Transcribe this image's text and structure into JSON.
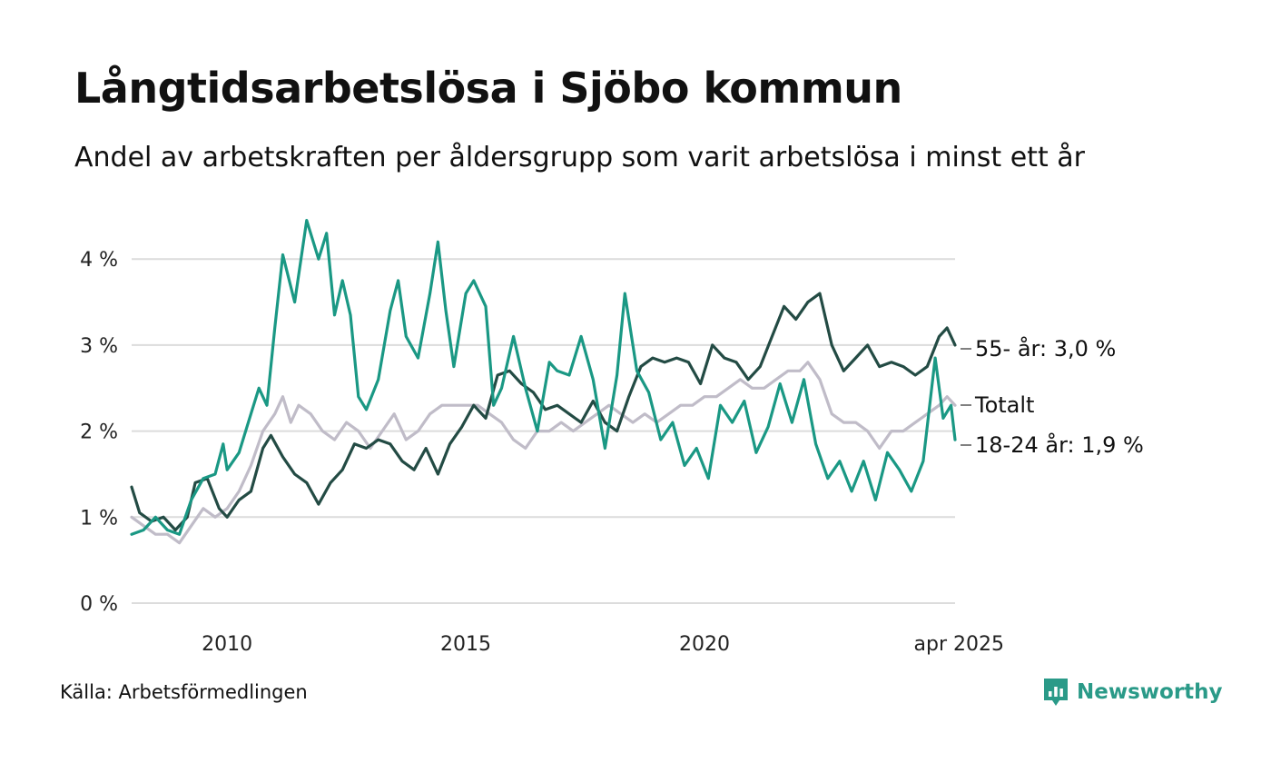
{
  "title": "Långtidsarbetslösa i Sjöbo kommun",
  "subtitle": "Andel av arbetskraften per åldersgrupp som varit arbetslösa i minst ett år",
  "source": "Källa: Arbetsförmedlingen",
  "brand": {
    "name": "Newsworthy",
    "icon": "newsworthy-logo-icon",
    "color": "#2a9a88"
  },
  "chart_data": {
    "type": "line",
    "y_unit": "%",
    "ylim": [
      0,
      4.6
    ],
    "xlim": [
      "2008-01",
      "2025-04"
    ],
    "y_ticks": [
      {
        "value": 0,
        "label": "0 %"
      },
      {
        "value": 1,
        "label": "1 %"
      },
      {
        "value": 2,
        "label": "2 %"
      },
      {
        "value": 3,
        "label": "3 %"
      },
      {
        "value": 4,
        "label": "4 %"
      }
    ],
    "x_ticks": [
      {
        "value": "2010-01",
        "label": "2010"
      },
      {
        "value": "2015-01",
        "label": "2015"
      },
      {
        "value": "2020-01",
        "label": "2020"
      },
      {
        "value": "2025-04",
        "label": "apr 2025"
      }
    ],
    "grid": "horizontal",
    "legend": "end labels at right",
    "series": [
      {
        "name": "Totalt",
        "end_label": "Totalt",
        "color": "#c0bcc8",
        "points": [
          [
            "2008-01",
            1.0
          ],
          [
            "2008-04",
            0.9
          ],
          [
            "2008-07",
            0.8
          ],
          [
            "2008-10",
            0.8
          ],
          [
            "2009-01",
            0.7
          ],
          [
            "2009-04",
            0.9
          ],
          [
            "2009-07",
            1.1
          ],
          [
            "2009-10",
            1.0
          ],
          [
            "2010-01",
            1.1
          ],
          [
            "2010-04",
            1.3
          ],
          [
            "2010-07",
            1.6
          ],
          [
            "2010-10",
            2.0
          ],
          [
            "2011-01",
            2.2
          ],
          [
            "2011-03",
            2.4
          ],
          [
            "2011-05",
            2.1
          ],
          [
            "2011-07",
            2.3
          ],
          [
            "2011-10",
            2.2
          ],
          [
            "2012-01",
            2.0
          ],
          [
            "2012-04",
            1.9
          ],
          [
            "2012-07",
            2.1
          ],
          [
            "2012-10",
            2.0
          ],
          [
            "2013-01",
            1.8
          ],
          [
            "2013-04",
            2.0
          ],
          [
            "2013-07",
            2.2
          ],
          [
            "2013-10",
            1.9
          ],
          [
            "2014-01",
            2.0
          ],
          [
            "2014-04",
            2.2
          ],
          [
            "2014-07",
            2.3
          ],
          [
            "2014-10",
            2.3
          ],
          [
            "2015-01",
            2.3
          ],
          [
            "2015-04",
            2.3
          ],
          [
            "2015-07",
            2.2
          ],
          [
            "2015-10",
            2.1
          ],
          [
            "2016-01",
            1.9
          ],
          [
            "2016-04",
            1.8
          ],
          [
            "2016-07",
            2.0
          ],
          [
            "2016-10",
            2.0
          ],
          [
            "2017-01",
            2.1
          ],
          [
            "2017-04",
            2.0
          ],
          [
            "2017-07",
            2.1
          ],
          [
            "2017-10",
            2.2
          ],
          [
            "2018-01",
            2.3
          ],
          [
            "2018-04",
            2.2
          ],
          [
            "2018-07",
            2.1
          ],
          [
            "2018-10",
            2.2
          ],
          [
            "2019-01",
            2.1
          ],
          [
            "2019-04",
            2.2
          ],
          [
            "2019-07",
            2.3
          ],
          [
            "2019-10",
            2.3
          ],
          [
            "2020-01",
            2.4
          ],
          [
            "2020-04",
            2.4
          ],
          [
            "2020-07",
            2.5
          ],
          [
            "2020-10",
            2.6
          ],
          [
            "2021-01",
            2.5
          ],
          [
            "2021-04",
            2.5
          ],
          [
            "2021-07",
            2.6
          ],
          [
            "2021-10",
            2.7
          ],
          [
            "2022-01",
            2.7
          ],
          [
            "2022-03",
            2.8
          ],
          [
            "2022-06",
            2.6
          ],
          [
            "2022-09",
            2.2
          ],
          [
            "2022-12",
            2.1
          ],
          [
            "2023-03",
            2.1
          ],
          [
            "2023-06",
            2.0
          ],
          [
            "2023-09",
            1.8
          ],
          [
            "2023-12",
            2.0
          ],
          [
            "2024-03",
            2.0
          ],
          [
            "2024-06",
            2.1
          ],
          [
            "2024-09",
            2.2
          ],
          [
            "2024-12",
            2.3
          ],
          [
            "2025-02",
            2.4
          ],
          [
            "2025-04",
            2.3
          ]
        ]
      },
      {
        "name": "55- år",
        "end_label": "55- år: 3,0 %",
        "color": "#234b44",
        "points": [
          [
            "2008-01",
            1.35
          ],
          [
            "2008-03",
            1.05
          ],
          [
            "2008-06",
            0.95
          ],
          [
            "2008-09",
            1.0
          ],
          [
            "2008-12",
            0.85
          ],
          [
            "2009-03",
            1.0
          ],
          [
            "2009-05",
            1.4
          ],
          [
            "2009-08",
            1.45
          ],
          [
            "2009-11",
            1.1
          ],
          [
            "2010-01",
            1.0
          ],
          [
            "2010-04",
            1.2
          ],
          [
            "2010-07",
            1.3
          ],
          [
            "2010-10",
            1.8
          ],
          [
            "2010-12",
            1.95
          ],
          [
            "2011-03",
            1.7
          ],
          [
            "2011-06",
            1.5
          ],
          [
            "2011-09",
            1.4
          ],
          [
            "2011-12",
            1.15
          ],
          [
            "2012-03",
            1.4
          ],
          [
            "2012-06",
            1.55
          ],
          [
            "2012-09",
            1.85
          ],
          [
            "2012-12",
            1.8
          ],
          [
            "2013-03",
            1.9
          ],
          [
            "2013-06",
            1.85
          ],
          [
            "2013-09",
            1.65
          ],
          [
            "2013-12",
            1.55
          ],
          [
            "2014-03",
            1.8
          ],
          [
            "2014-06",
            1.5
          ],
          [
            "2014-09",
            1.85
          ],
          [
            "2014-12",
            2.05
          ],
          [
            "2015-03",
            2.3
          ],
          [
            "2015-06",
            2.15
          ],
          [
            "2015-09",
            2.65
          ],
          [
            "2015-12",
            2.7
          ],
          [
            "2016-03",
            2.55
          ],
          [
            "2016-06",
            2.45
          ],
          [
            "2016-09",
            2.25
          ],
          [
            "2016-12",
            2.3
          ],
          [
            "2017-03",
            2.2
          ],
          [
            "2017-06",
            2.1
          ],
          [
            "2017-09",
            2.35
          ],
          [
            "2017-12",
            2.1
          ],
          [
            "2018-03",
            2.0
          ],
          [
            "2018-06",
            2.4
          ],
          [
            "2018-09",
            2.75
          ],
          [
            "2018-12",
            2.85
          ],
          [
            "2019-03",
            2.8
          ],
          [
            "2019-06",
            2.85
          ],
          [
            "2019-09",
            2.8
          ],
          [
            "2019-12",
            2.55
          ],
          [
            "2020-03",
            3.0
          ],
          [
            "2020-06",
            2.85
          ],
          [
            "2020-09",
            2.8
          ],
          [
            "2020-12",
            2.6
          ],
          [
            "2021-03",
            2.75
          ],
          [
            "2021-06",
            3.1
          ],
          [
            "2021-09",
            3.45
          ],
          [
            "2021-12",
            3.3
          ],
          [
            "2022-03",
            3.5
          ],
          [
            "2022-06",
            3.6
          ],
          [
            "2022-09",
            3.0
          ],
          [
            "2022-12",
            2.7
          ],
          [
            "2023-03",
            2.85
          ],
          [
            "2023-06",
            3.0
          ],
          [
            "2023-09",
            2.75
          ],
          [
            "2023-12",
            2.8
          ],
          [
            "2024-03",
            2.75
          ],
          [
            "2024-06",
            2.65
          ],
          [
            "2024-09",
            2.75
          ],
          [
            "2024-12",
            3.1
          ],
          [
            "2025-02",
            3.2
          ],
          [
            "2025-04",
            3.0
          ]
        ]
      },
      {
        "name": "18-24 år",
        "end_label": "18-24 år: 1,9 %",
        "color": "#1a9884",
        "points": [
          [
            "2008-01",
            0.8
          ],
          [
            "2008-04",
            0.85
          ],
          [
            "2008-07",
            1.0
          ],
          [
            "2008-10",
            0.85
          ],
          [
            "2009-01",
            0.8
          ],
          [
            "2009-04",
            1.2
          ],
          [
            "2009-07",
            1.45
          ],
          [
            "2009-10",
            1.5
          ],
          [
            "2009-12",
            1.85
          ],
          [
            "2010-01",
            1.55
          ],
          [
            "2010-04",
            1.75
          ],
          [
            "2010-07",
            2.2
          ],
          [
            "2010-09",
            2.5
          ],
          [
            "2010-11",
            2.3
          ],
          [
            "2011-01",
            3.2
          ],
          [
            "2011-03",
            4.05
          ],
          [
            "2011-06",
            3.5
          ],
          [
            "2011-09",
            4.45
          ],
          [
            "2011-12",
            4.0
          ],
          [
            "2012-02",
            4.3
          ],
          [
            "2012-04",
            3.35
          ],
          [
            "2012-06",
            3.75
          ],
          [
            "2012-08",
            3.35
          ],
          [
            "2012-10",
            2.4
          ],
          [
            "2012-12",
            2.25
          ],
          [
            "2013-03",
            2.6
          ],
          [
            "2013-06",
            3.4
          ],
          [
            "2013-08",
            3.75
          ],
          [
            "2013-10",
            3.1
          ],
          [
            "2014-01",
            2.85
          ],
          [
            "2014-04",
            3.6
          ],
          [
            "2014-06",
            4.2
          ],
          [
            "2014-08",
            3.4
          ],
          [
            "2014-10",
            2.75
          ],
          [
            "2015-01",
            3.6
          ],
          [
            "2015-03",
            3.75
          ],
          [
            "2015-06",
            3.45
          ],
          [
            "2015-08",
            2.3
          ],
          [
            "2015-10",
            2.5
          ],
          [
            "2016-01",
            3.1
          ],
          [
            "2016-04",
            2.5
          ],
          [
            "2016-07",
            2.0
          ],
          [
            "2016-10",
            2.8
          ],
          [
            "2016-12",
            2.7
          ],
          [
            "2017-03",
            2.65
          ],
          [
            "2017-06",
            3.1
          ],
          [
            "2017-09",
            2.6
          ],
          [
            "2017-12",
            1.8
          ],
          [
            "2018-03",
            2.65
          ],
          [
            "2018-05",
            3.6
          ],
          [
            "2018-08",
            2.7
          ],
          [
            "2018-11",
            2.45
          ],
          [
            "2019-02",
            1.9
          ],
          [
            "2019-05",
            2.1
          ],
          [
            "2019-08",
            1.6
          ],
          [
            "2019-11",
            1.8
          ],
          [
            "2020-02",
            1.45
          ],
          [
            "2020-05",
            2.3
          ],
          [
            "2020-08",
            2.1
          ],
          [
            "2020-11",
            2.35
          ],
          [
            "2021-02",
            1.75
          ],
          [
            "2021-05",
            2.05
          ],
          [
            "2021-08",
            2.55
          ],
          [
            "2021-11",
            2.1
          ],
          [
            "2022-02",
            2.6
          ],
          [
            "2022-05",
            1.85
          ],
          [
            "2022-08",
            1.45
          ],
          [
            "2022-11",
            1.65
          ],
          [
            "2023-02",
            1.3
          ],
          [
            "2023-05",
            1.65
          ],
          [
            "2023-08",
            1.2
          ],
          [
            "2023-11",
            1.75
          ],
          [
            "2024-02",
            1.55
          ],
          [
            "2024-05",
            1.3
          ],
          [
            "2024-08",
            1.65
          ],
          [
            "2024-11",
            2.85
          ],
          [
            "2025-01",
            2.15
          ],
          [
            "2025-03",
            2.3
          ],
          [
            "2025-04",
            1.9
          ]
        ]
      }
    ]
  }
}
